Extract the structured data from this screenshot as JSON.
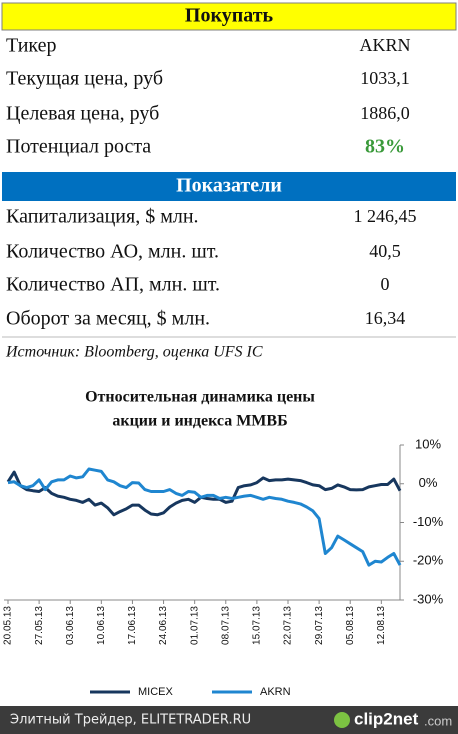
{
  "header": {
    "title": "Покупать"
  },
  "table": {
    "rows": [
      [
        "Тикер",
        "AKRN"
      ],
      [
        "Текущая цена, руб",
        "1033,1"
      ],
      [
        "Целевая цена, руб",
        "1886,0"
      ],
      [
        "Потенциал роста",
        "83%"
      ]
    ]
  },
  "indicators": {
    "title": "Показатели",
    "rows": [
      [
        "Капитализация, $ млн.",
        "1 246,45"
      ],
      [
        "Количество АО, млн. шт.",
        "40,5"
      ],
      [
        "Количество АП, млн. шт.",
        "0"
      ],
      [
        "Оборот за месяц, $ млн.",
        "16,34"
      ]
    ]
  },
  "source": "Источник: Bloomberg, оценка UFS IC",
  "chart_data": {
    "type": "line",
    "title": [
      "Относительная динамика цены",
      "акции и индекса ММВБ"
    ],
    "categories": [
      "20.05.13",
      null,
      null,
      null,
      null,
      "27.05.13",
      null,
      null,
      null,
      null,
      "03.06.13",
      null,
      null,
      null,
      null,
      "10.06.13",
      null,
      null,
      null,
      null,
      "17.06.13",
      null,
      null,
      null,
      null,
      "24.06.13",
      null,
      null,
      null,
      null,
      "01.07.13",
      null,
      null,
      null,
      null,
      "08.07.13",
      null,
      null,
      null,
      null,
      "15.07.13",
      null,
      null,
      null,
      null,
      "22.07.13",
      null,
      null,
      null,
      null,
      "29.07.13",
      null,
      null,
      null,
      null,
      "05.08.13",
      null,
      null,
      null,
      null,
      "12.08.13",
      null,
      null,
      null
    ],
    "series": [
      {
        "name": "MICEX",
        "color": "#17375e",
        "values": [
          0.5,
          3.0,
          -0.5,
          -1.5,
          -1.8,
          -2.0,
          -1.0,
          -2.5,
          -3.2,
          -3.5,
          -4.0,
          -4.3,
          -4.8,
          -4.0,
          -5.5,
          -5.0,
          -6.2,
          -8.0,
          -7.2,
          -6.5,
          -5.5,
          -5.5,
          -6.8,
          -7.8,
          -8.0,
          -7.5,
          -6.0,
          -5.0,
          -4.3,
          -4.0,
          -4.8,
          -3.5,
          -3.8,
          -4.0,
          -4.0,
          -4.8,
          -4.5,
          -1.0,
          -0.5,
          -0.3,
          0.3,
          1.5,
          0.8,
          1.0,
          1.0,
          1.2,
          1.0,
          0.8,
          0.3,
          -0.3,
          -0.5,
          -1.5,
          -1.2,
          -0.3,
          -0.8,
          -1.5,
          -1.6,
          -1.5,
          -0.8,
          -0.5,
          -0.2,
          -0.2,
          1.2,
          -1.8
        ]
      },
      {
        "name": "AKRN",
        "color": "#1f86d0",
        "values": [
          0.3,
          0.5,
          -0.5,
          -1.0,
          -0.5,
          1.0,
          -1.5,
          0.5,
          1.0,
          1.0,
          2.0,
          1.5,
          1.8,
          3.8,
          3.5,
          3.2,
          1.0,
          0.5,
          -0.5,
          -1.0,
          0.3,
          0.2,
          -1.5,
          -2.0,
          -2.0,
          -2.0,
          -1.5,
          -2.5,
          -3.0,
          -2.0,
          -2.2,
          -3.5,
          -3.0,
          -3.0,
          -3.8,
          -3.5,
          -3.8,
          -3.5,
          -3.2,
          -3.0,
          -3.5,
          -4.0,
          -3.5,
          -3.8,
          -4.0,
          -4.5,
          -4.8,
          -5.2,
          -6.0,
          -7.0,
          -9.0,
          -18.0,
          -16.5,
          -13.5,
          -14.5,
          -15.5,
          -16.5,
          -17.5,
          -21.0,
          -20.0,
          -20.2,
          -19.0,
          -18.0,
          -21.0
        ]
      }
    ],
    "ylim": [
      -30,
      10
    ],
    "yticks": [
      {
        "value": 10,
        "label": "10%"
      },
      {
        "value": 0,
        "label": "0%"
      },
      {
        "value": -10,
        "label": "-10%"
      },
      {
        "value": -20,
        "label": "-20%"
      },
      {
        "value": -30,
        "label": "-30%"
      }
    ],
    "legend": "bottom"
  },
  "footer": {
    "text": "Элитный Трейдер, ELITETRADER.RU",
    "logo": "clip2net",
    "logo_suffix": ".com"
  }
}
